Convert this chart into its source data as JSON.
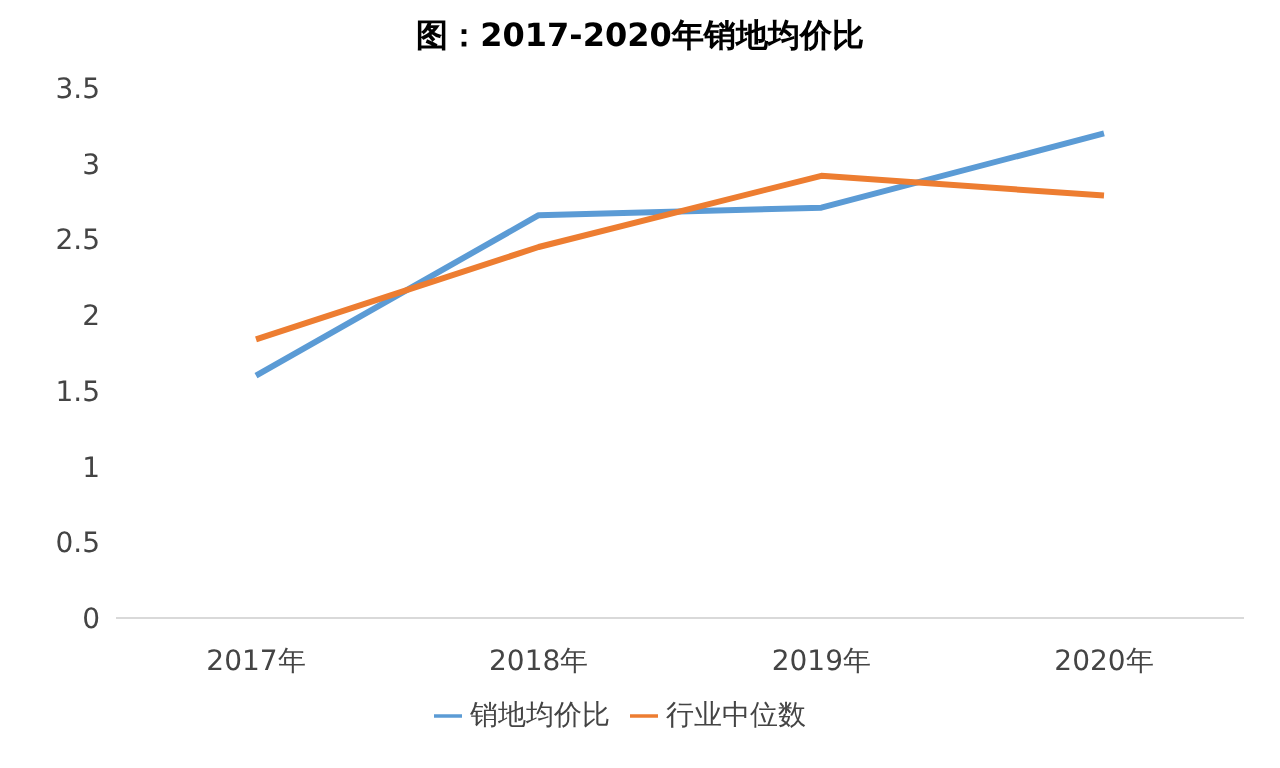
{
  "chart_data": {
    "type": "line",
    "title": "图：2017-2020年销地均价比",
    "categories": [
      "2017年",
      "2018年",
      "2019年",
      "2020年"
    ],
    "series": [
      {
        "name": "销地均价比",
        "color": "#5b9bd5",
        "values": [
          1.6,
          2.66,
          2.71,
          3.2
        ]
      },
      {
        "name": "行业中位数",
        "color": "#ed7d31",
        "values": [
          1.84,
          2.45,
          2.92,
          2.79
        ]
      }
    ],
    "ylim": [
      0,
      3.5
    ],
    "yticks": [
      0,
      0.5,
      1,
      1.5,
      2,
      2.5,
      3,
      3.5
    ],
    "grid": false,
    "legend": "bottom",
    "marker": "none",
    "line_style": "solid"
  }
}
